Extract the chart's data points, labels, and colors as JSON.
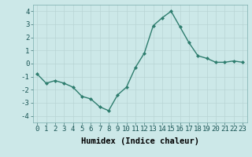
{
  "x": [
    0,
    1,
    2,
    3,
    4,
    5,
    6,
    7,
    8,
    9,
    10,
    11,
    12,
    13,
    14,
    15,
    16,
    17,
    18,
    19,
    20,
    21,
    22,
    23
  ],
  "y": [
    -0.8,
    -1.5,
    -1.3,
    -1.5,
    -1.8,
    -2.5,
    -2.7,
    -3.3,
    -3.6,
    -2.4,
    -1.8,
    -0.3,
    0.8,
    2.9,
    3.5,
    4.0,
    2.8,
    1.6,
    0.6,
    0.4,
    0.1,
    0.1,
    0.2,
    0.1
  ],
  "line_color": "#2e7d6e",
  "marker": "D",
  "marker_size": 2.0,
  "bg_color": "#cce8e8",
  "grid_color": "#b8d4d4",
  "xlabel": "Humidex (Indice chaleur)",
  "ylim": [
    -4.5,
    4.5
  ],
  "xlim": [
    -0.5,
    23.5
  ],
  "yticks": [
    -4,
    -3,
    -2,
    -1,
    0,
    1,
    2,
    3,
    4
  ],
  "xticks": [
    0,
    1,
    2,
    3,
    4,
    5,
    6,
    7,
    8,
    9,
    10,
    11,
    12,
    13,
    14,
    15,
    16,
    17,
    18,
    19,
    20,
    21,
    22,
    23
  ],
  "tick_fontsize": 6.5,
  "xlabel_fontsize": 7.5,
  "line_width": 1.0
}
